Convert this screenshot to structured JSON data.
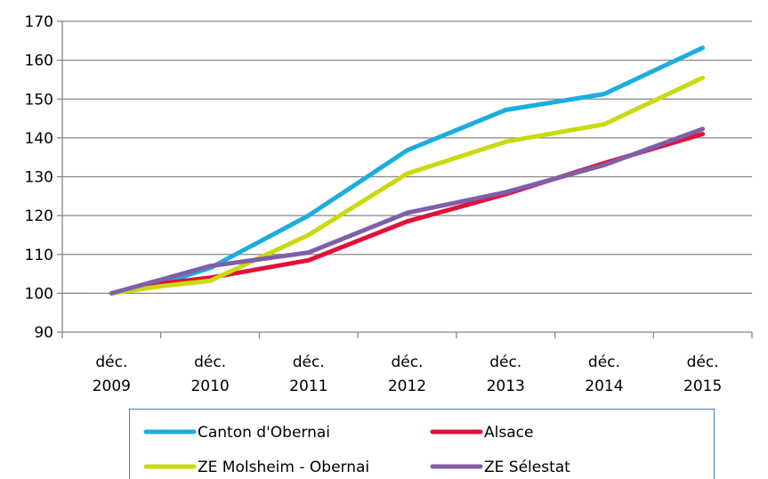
{
  "chart_data": {
    "type": "line",
    "title": "",
    "xlabel": "",
    "ylabel": "",
    "categories": [
      [
        "déc.",
        "2009"
      ],
      [
        "déc.",
        "2010"
      ],
      [
        "déc.",
        "2011"
      ],
      [
        "déc.",
        "2012"
      ],
      [
        "déc.",
        "2013"
      ],
      [
        "déc.",
        "2014"
      ],
      [
        "déc.",
        "2015"
      ]
    ],
    "ylim": [
      90,
      170
    ],
    "yticks": [
      "90",
      "100",
      "110",
      "120",
      "130",
      "140",
      "150",
      "160",
      "170"
    ],
    "grid": true,
    "legend_placement": "bottom",
    "series": [
      {
        "name": "Canton d'Obernai",
        "color": "#1BADE0",
        "points": [
          [
            0,
            100
          ],
          [
            0.5,
            102.5
          ],
          [
            1,
            106.5
          ],
          [
            2,
            120
          ],
          [
            3,
            136.8
          ],
          [
            4,
            147.2
          ],
          [
            5,
            151.3
          ],
          [
            6,
            163.2
          ]
        ]
      },
      {
        "name": "Alsace",
        "color": "#E2103B",
        "points": [
          [
            0,
            100
          ],
          [
            0.5,
            102.5
          ],
          [
            1,
            104
          ],
          [
            2,
            108.5
          ],
          [
            3,
            118.5
          ],
          [
            4,
            125.5
          ],
          [
            5,
            133.5
          ],
          [
            6,
            141
          ]
        ]
      },
      {
        "name": "ZE Molsheim - Obernai",
        "color": "#C9DA0D",
        "points": [
          [
            0,
            100
          ],
          [
            0.5,
            101.8
          ],
          [
            1,
            103.2
          ],
          [
            2,
            115
          ],
          [
            3,
            130.8
          ],
          [
            4,
            139
          ],
          [
            5,
            143.5
          ],
          [
            6,
            155.5
          ]
        ]
      },
      {
        "name": "ZE Sélestat",
        "color": "#7F5FA8",
        "points": [
          [
            0,
            100
          ],
          [
            0.5,
            103.5
          ],
          [
            1,
            107
          ],
          [
            2,
            110.5
          ],
          [
            3,
            120.7
          ],
          [
            4,
            126
          ],
          [
            5,
            133
          ],
          [
            6,
            142.3
          ]
        ]
      }
    ]
  }
}
